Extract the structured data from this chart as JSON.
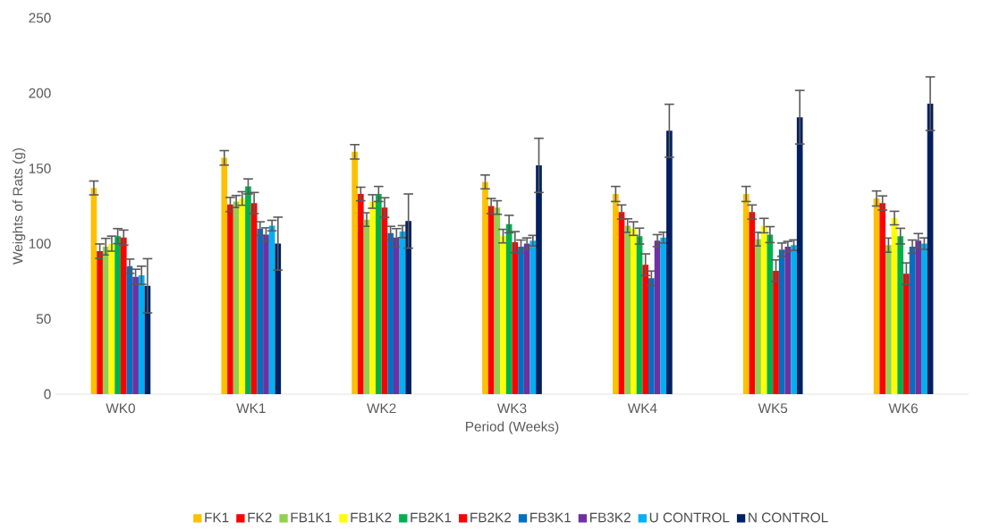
{
  "chart_data": {
    "type": "bar",
    "xlabel": "Period (Weeks)",
    "ylabel": "Weights of Rats (g)",
    "categories": [
      "WK0",
      "WK1",
      "WK2",
      "WK3",
      "WK4",
      "WK5",
      "WK6"
    ],
    "ylim": [
      0,
      250
    ],
    "yticks": [
      0,
      50,
      100,
      150,
      200,
      250
    ],
    "legend": "bottom",
    "series": [
      {
        "name": "FK1",
        "color": "#ffc000",
        "values": [
          137,
          157,
          161,
          141,
          133,
          133,
          130
        ],
        "errors": [
          4.6,
          4.8,
          4.8,
          4.6,
          5,
          5,
          5
        ]
      },
      {
        "name": "FK2",
        "color": "#ff0000",
        "values": [
          95,
          126,
          133,
          125,
          121,
          121,
          127
        ],
        "errors": [
          4.8,
          4.7,
          4.5,
          5,
          4.7,
          4.7,
          4.7
        ]
      },
      {
        "name": "FB1K1",
        "color": "#92d050",
        "values": [
          98,
          128,
          116,
          124,
          112,
          103,
          99
        ],
        "errors": [
          5.5,
          4,
          4.5,
          4.5,
          4.5,
          4.5,
          4.7
        ]
      },
      {
        "name": "FB1K2",
        "color": "#ffff00",
        "values": [
          100,
          130,
          128,
          105,
          110,
          112,
          117
        ],
        "errors": [
          5,
          4.5,
          4.5,
          4.5,
          4.5,
          4.8,
          4.5
        ]
      },
      {
        "name": "FB2K1",
        "color": "#00b050",
        "values": [
          105,
          138,
          133,
          113,
          105,
          106,
          105
        ],
        "errors": [
          5,
          5,
          5,
          5.8,
          5.3,
          5.3,
          5.2
        ]
      },
      {
        "name": "FB2K2",
        "color": "#ff0000",
        "values": [
          104,
          127,
          124,
          101,
          86,
          82,
          80
        ],
        "errors": [
          5,
          7,
          6.5,
          7,
          7.2,
          7.2,
          7.2
        ]
      },
      {
        "name": "FB3K1",
        "color": "#0070c0",
        "values": [
          85,
          110,
          107,
          98,
          77,
          96,
          98
        ],
        "errors": [
          4.7,
          4.5,
          4.5,
          4.4,
          4.8,
          4.4,
          4.4
        ]
      },
      {
        "name": "FB3K2",
        "color": "#7030a0",
        "values": [
          78,
          106,
          104,
          100,
          102,
          98,
          102
        ],
        "errors": [
          5,
          4.5,
          6,
          3.8,
          4,
          3.5,
          4.7
        ]
      },
      {
        "name": "U CONTROL",
        "color": "#00b0f0",
        "values": [
          79,
          112,
          108,
          102,
          104,
          99,
          100
        ],
        "errors": [
          6,
          3.5,
          4,
          3.5,
          3.6,
          3.5,
          3.8
        ]
      },
      {
        "name": "N CONTROL",
        "color": "#002060",
        "values": [
          72,
          100,
          115,
          152,
          175,
          184,
          193
        ],
        "errors": [
          18,
          17.6,
          18,
          18,
          17.6,
          17.8,
          17.8
        ]
      }
    ]
  }
}
